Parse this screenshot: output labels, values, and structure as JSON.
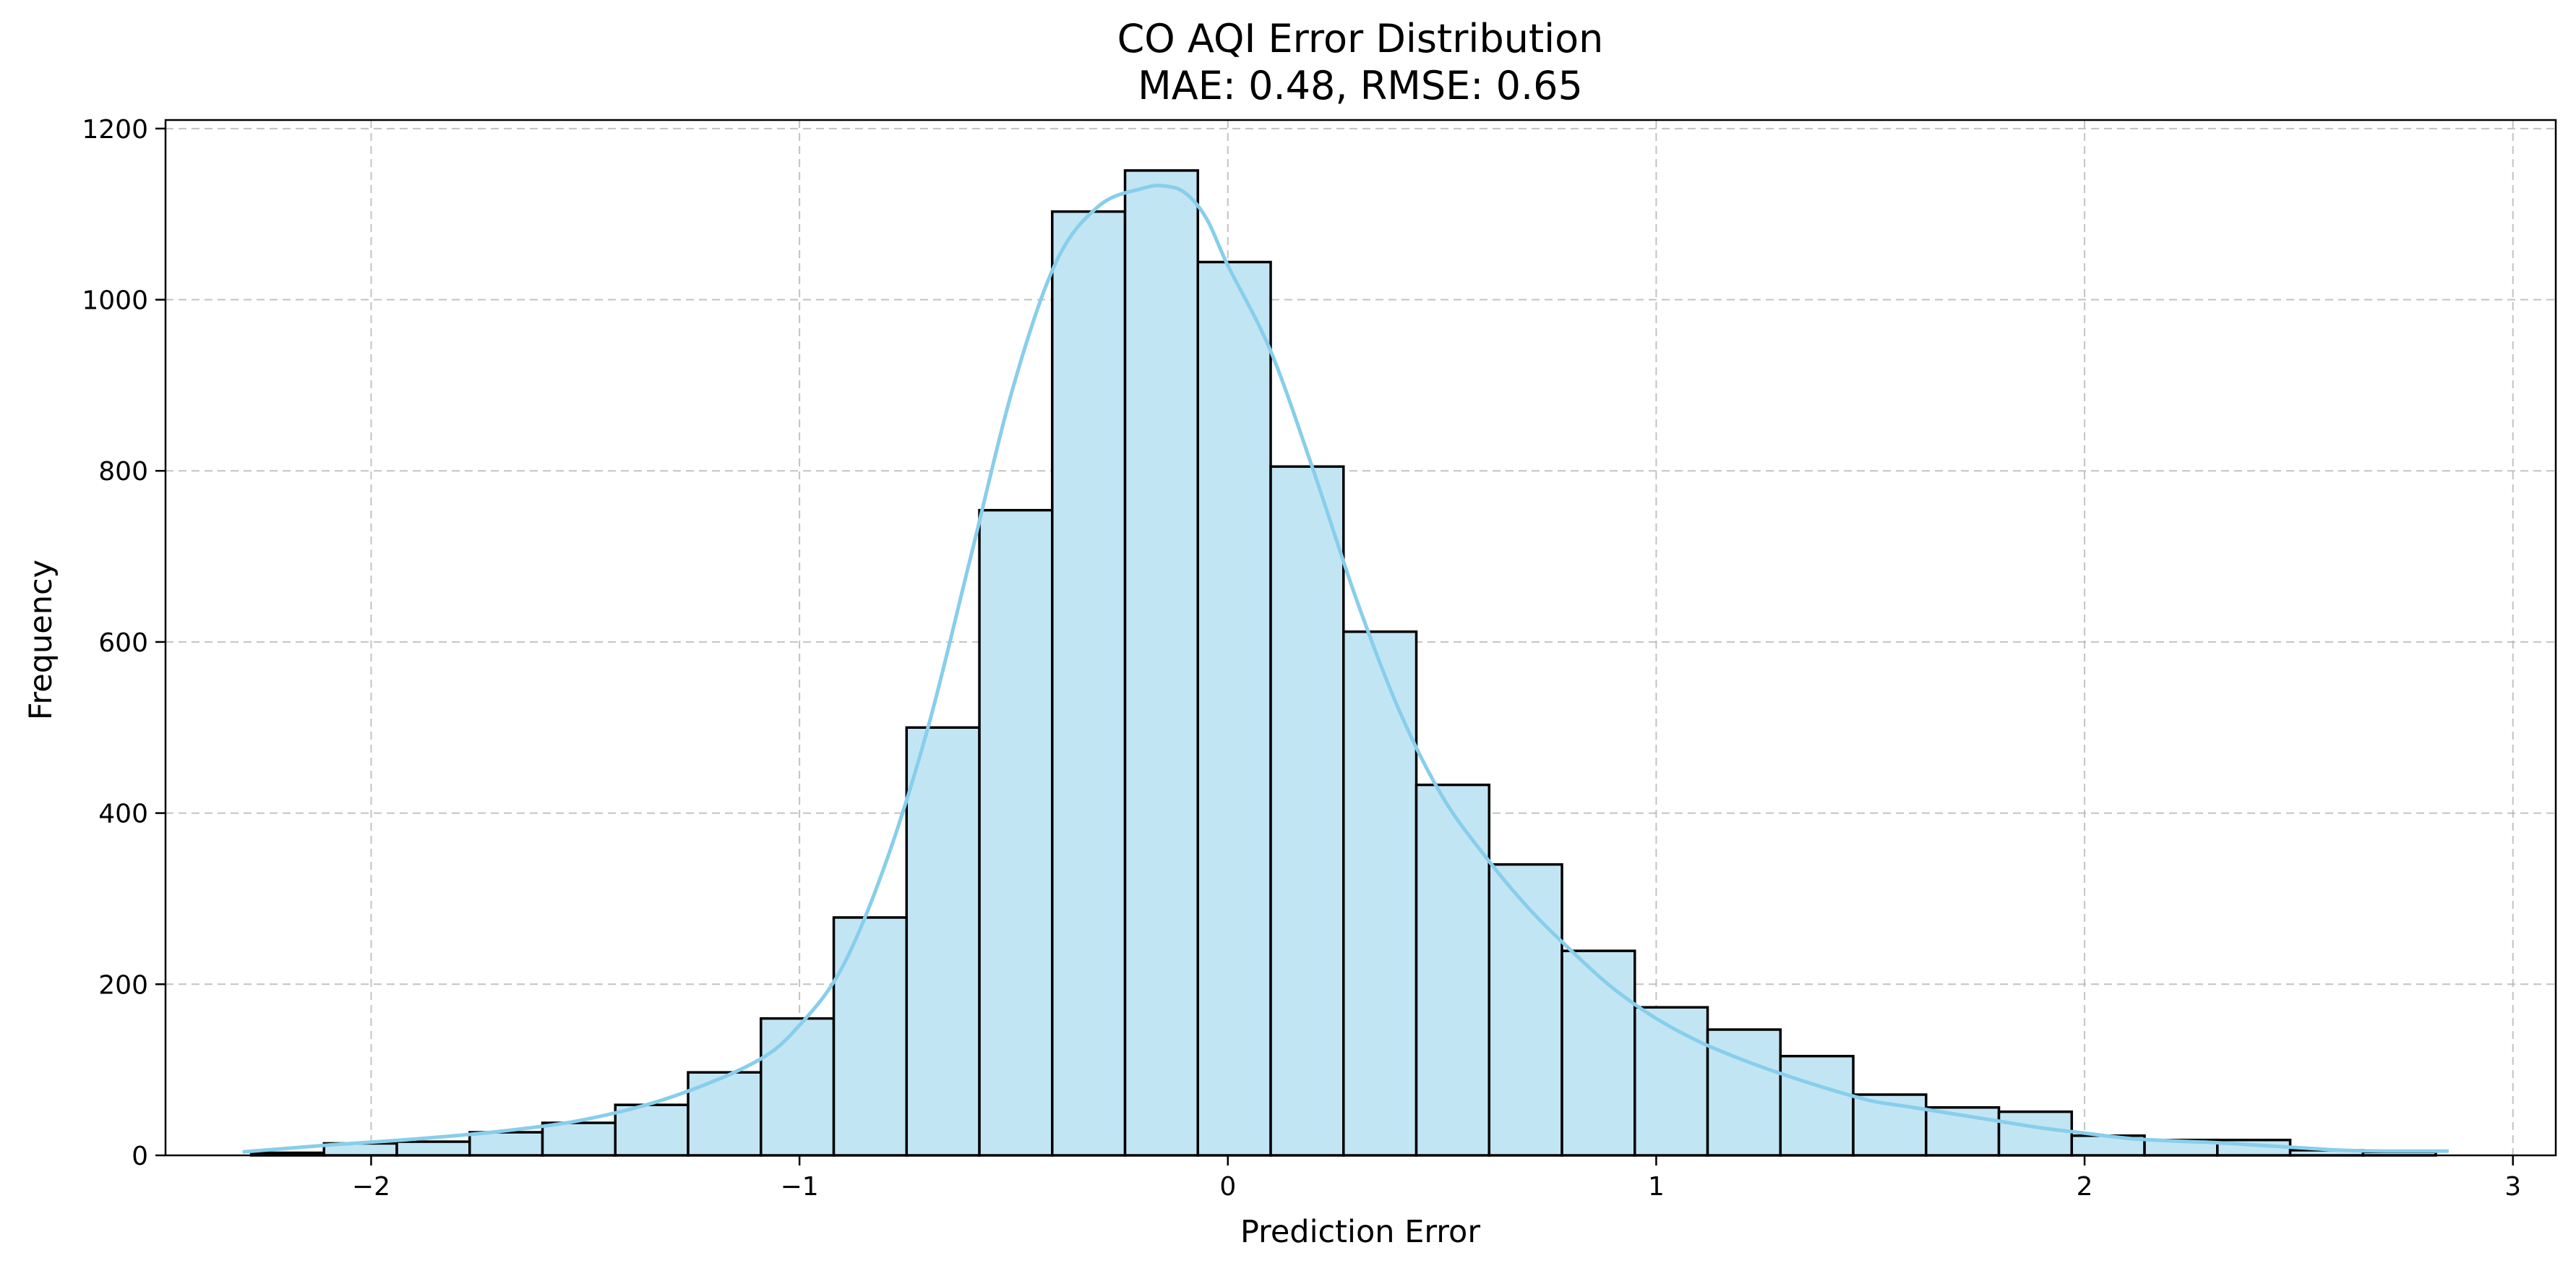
{
  "chart_data": {
    "type": "bar",
    "title": "CO AQI Error Distribution",
    "subtitle": "MAE: 0.48, RMSE: 0.65",
    "xlabel": "Prediction Error",
    "ylabel": "Frequency",
    "xlim": [
      -2.48,
      3.1
    ],
    "ylim": [
      0,
      1210
    ],
    "xticks": [
      -2,
      -1,
      0,
      1,
      2,
      3
    ],
    "xtick_labels": [
      "−2",
      "−1",
      "0",
      "1",
      "2",
      "3"
    ],
    "yticks": [
      0,
      200,
      400,
      600,
      800,
      1000,
      1200
    ],
    "ytick_labels": [
      "0",
      "200",
      "400",
      "600",
      "800",
      "1000",
      "1200"
    ],
    "grid": true,
    "colors": {
      "bar_fill": "#c2e5f4",
      "bar_edge": "#000000",
      "kde_line": "#87ceeb",
      "grid": "#b0b0b0"
    },
    "bins": {
      "edges": [
        -2.28,
        -2.11,
        -1.94,
        -1.77,
        -1.6,
        -1.43,
        -1.26,
        -1.09,
        -0.92,
        -0.75,
        -0.58,
        -0.41,
        -0.24,
        -0.07,
        0.1,
        0.27,
        0.44,
        0.61,
        0.78,
        0.95,
        1.12,
        1.29,
        1.46,
        1.63,
        1.8,
        1.97,
        2.14,
        2.31,
        2.48,
        2.65,
        2.82
      ],
      "counts": [
        3,
        14,
        16,
        27,
        38,
        59,
        97,
        160,
        278,
        500,
        754,
        1103,
        1151,
        1044,
        805,
        612,
        433,
        340,
        239,
        173,
        147,
        116,
        71,
        56,
        51,
        23,
        18,
        18,
        6,
        4
      ]
    },
    "kde": {
      "x": [
        -2.3,
        -2.1,
        -1.9,
        -1.7,
        -1.5,
        -1.3,
        -1.1,
        -1.0,
        -0.9,
        -0.8,
        -0.7,
        -0.6,
        -0.5,
        -0.4,
        -0.3,
        -0.2,
        -0.15,
        -0.1,
        -0.05,
        0.0,
        0.1,
        0.2,
        0.3,
        0.4,
        0.5,
        0.6,
        0.7,
        0.8,
        0.9,
        1.0,
        1.1,
        1.2,
        1.3,
        1.4,
        1.5,
        1.6,
        1.7,
        1.8,
        1.9,
        2.0,
        2.1,
        2.2,
        2.3,
        2.4,
        2.5,
        2.6,
        2.7,
        2.85
      ],
      "y": [
        4,
        12,
        19,
        28,
        42,
        68,
        110,
        152,
        220,
        340,
        500,
        700,
        900,
        1045,
        1110,
        1130,
        1133,
        1125,
        1095,
        1040,
        940,
        800,
        650,
        520,
        420,
        350,
        290,
        240,
        195,
        160,
        133,
        112,
        94,
        78,
        64,
        56,
        48,
        40,
        32,
        26,
        20,
        17,
        15,
        12,
        9,
        6,
        5,
        5
      ]
    }
  }
}
